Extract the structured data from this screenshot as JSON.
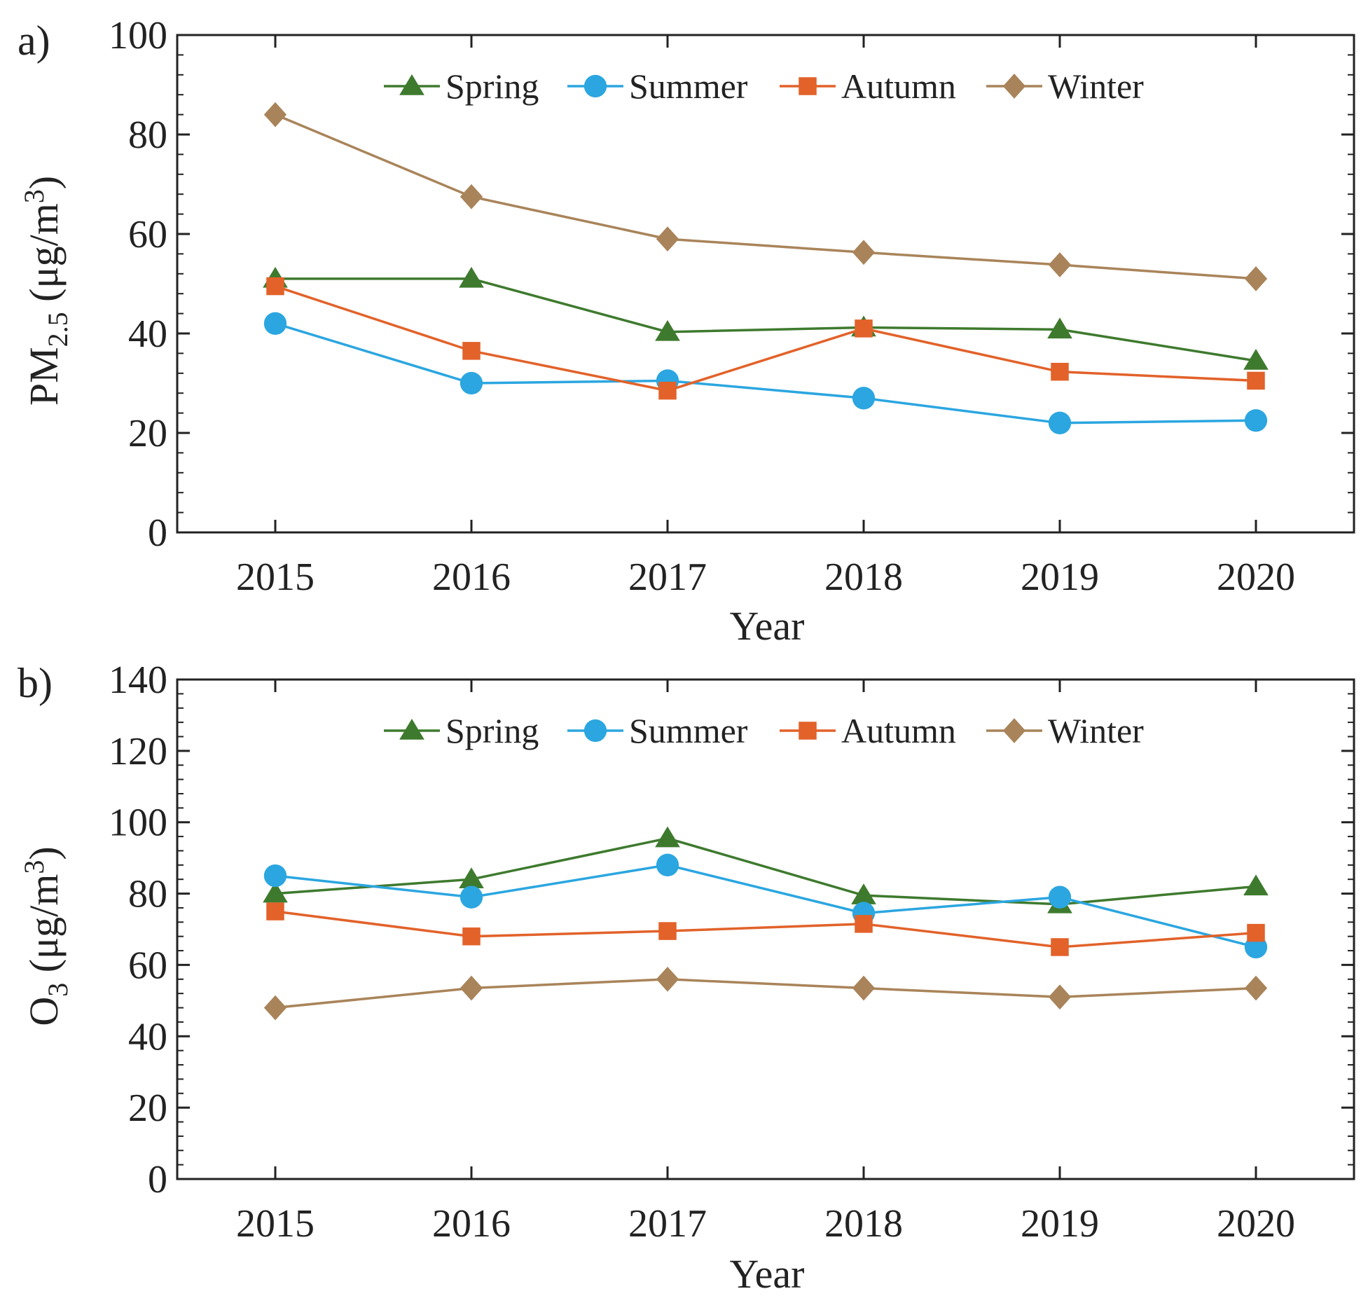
{
  "figure": {
    "colors": {
      "Spring": "#3e7a2e",
      "Summer": "#2ba6e0",
      "Autumn": "#e2622a",
      "Winter": "#a9845a"
    }
  },
  "chart_data": [
    {
      "type": "line",
      "panel_label": "a)",
      "xlabel": "Year",
      "ylabel_main": "PM",
      "ylabel_sub": "2.5",
      "ylabel_unit": "(μg/m",
      "ylabel_sup": "3",
      "ylabel_close": ")",
      "x": [
        "2015",
        "2016",
        "2017",
        "2018",
        "2019",
        "2020"
      ],
      "ylim": [
        0,
        100
      ],
      "yticks": [
        "0",
        "20",
        "40",
        "60",
        "80",
        "100"
      ],
      "legend_position": "top-center",
      "series": [
        {
          "name": "Spring",
          "marker": "triangle",
          "values": [
            51,
            51,
            40.3,
            41.2,
            40.8,
            34.5
          ]
        },
        {
          "name": "Summer",
          "marker": "circle",
          "values": [
            42,
            30,
            30.5,
            27,
            22,
            22.5
          ]
        },
        {
          "name": "Autumn",
          "marker": "square",
          "values": [
            49.5,
            36.5,
            28.5,
            41,
            32.3,
            30.5
          ]
        },
        {
          "name": "Winter",
          "marker": "diamond",
          "values": [
            84,
            67.5,
            59,
            56.3,
            53.8,
            51
          ]
        }
      ]
    },
    {
      "type": "line",
      "panel_label": "b)",
      "xlabel": "Year",
      "ylabel_main": "O",
      "ylabel_sub": "3",
      "ylabel_unit": "(μg/m",
      "ylabel_sup": "3",
      "ylabel_close": ")",
      "x": [
        "2015",
        "2016",
        "2017",
        "2018",
        "2019",
        "2020"
      ],
      "ylim": [
        0,
        140
      ],
      "yticks": [
        "0",
        "20",
        "40",
        "60",
        "80",
        "100",
        "120",
        "140"
      ],
      "legend_position": "top-center",
      "series": [
        {
          "name": "Spring",
          "marker": "triangle",
          "values": [
            80,
            84,
            95.5,
            79.5,
            77,
            82
          ]
        },
        {
          "name": "Summer",
          "marker": "circle",
          "values": [
            85,
            79,
            88,
            74.5,
            79,
            65
          ]
        },
        {
          "name": "Autumn",
          "marker": "square",
          "values": [
            75,
            68,
            69.5,
            71.5,
            65,
            69
          ]
        },
        {
          "name": "Winter",
          "marker": "diamond",
          "values": [
            48,
            53.5,
            56,
            53.5,
            51,
            53.5
          ]
        }
      ]
    }
  ]
}
